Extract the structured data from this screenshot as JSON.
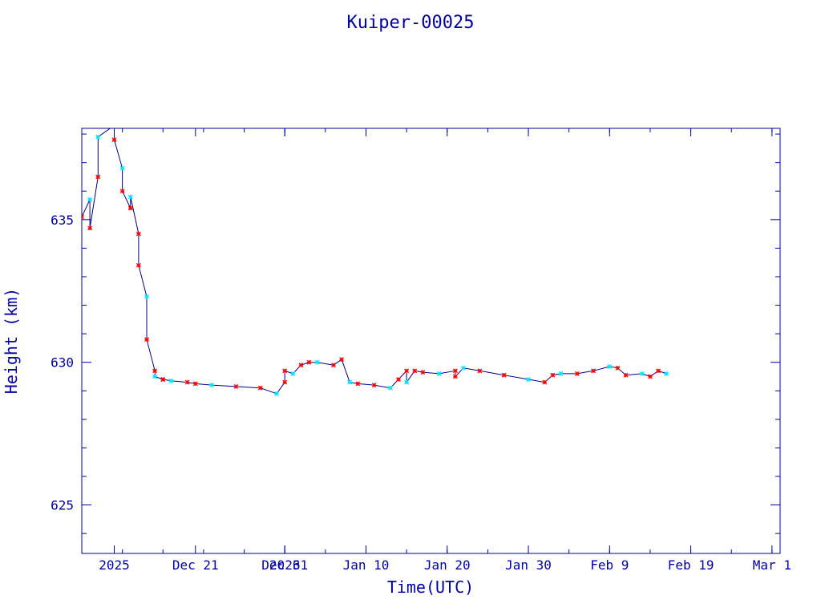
{
  "chart_data": {
    "type": "line",
    "title": "Kuiper-00025",
    "xlabel": "Time(UTC)",
    "ylabel": "Height (km)",
    "ylim": [
      623.3,
      638.2
    ],
    "xlim": [
      "2025-12-07",
      "2026-03-03"
    ],
    "x_tick_labels": [
      "2025",
      "Dec 21",
      "Dec 31",
      "2026",
      "Jan 10",
      "Jan 20",
      "Jan 30",
      "Feb  9",
      "Feb 19",
      "Mar  1"
    ],
    "x_tick_dates": [
      "2025-12-11",
      "2025-12-21",
      "2026-01-01",
      "2026-01-01",
      "2026-01-11",
      "2026-01-21",
      "2026-01-31",
      "2026-02-10",
      "2026-02-20",
      "2026-03-02"
    ],
    "y_ticks": [
      625,
      630,
      635
    ],
    "grid": false,
    "colors": {
      "axis": "#0000a0",
      "line": "#000080",
      "marker_a": "#ff0000",
      "marker_b": "#00e5ff"
    },
    "series": [
      {
        "x": [
          "2025-12-07",
          "2025-12-08",
          "2025-12-08",
          "2025-12-09",
          "2025-12-09",
          "2025-12-11",
          "2025-12-11",
          "2025-12-12",
          "2025-12-12",
          "2025-12-13",
          "2025-12-13",
          "2025-12-14",
          "2025-12-14",
          "2025-12-15",
          "2025-12-15",
          "2025-12-16",
          "2025-12-16",
          "2025-12-17",
          "2025-12-17",
          "2025-12-18",
          "2025-12-20",
          "2025-12-21",
          "2025-12-23",
          "2025-12-26",
          "2025-12-29",
          "2025-12-31",
          "2026-01-01",
          "2026-01-01",
          "2026-01-02",
          "2026-01-03",
          "2026-01-04",
          "2026-01-05",
          "2026-01-07",
          "2026-01-08",
          "2026-01-09",
          "2026-01-10",
          "2026-01-12",
          "2026-01-14",
          "2026-01-15",
          "2026-01-16",
          "2026-01-16",
          "2026-01-17",
          "2026-01-18",
          "2026-01-20",
          "2026-01-22",
          "2026-01-22",
          "2026-01-23",
          "2026-01-25",
          "2026-01-28",
          "2026-01-31",
          "2026-02-02",
          "2026-02-03",
          "2026-02-04",
          "2026-02-06",
          "2026-02-08",
          "2026-02-10",
          "2026-02-11",
          "2026-02-12",
          "2026-02-14",
          "2026-02-15",
          "2026-02-16",
          "2026-02-17"
        ],
        "y": [
          635.1,
          635.7,
          634.7,
          636.5,
          637.9,
          638.3,
          637.8,
          636.8,
          636.0,
          635.4,
          635.8,
          634.5,
          633.4,
          632.3,
          630.8,
          629.7,
          629.5,
          629.4,
          629.4,
          629.35,
          629.3,
          629.25,
          629.2,
          629.15,
          629.1,
          628.9,
          629.3,
          629.7,
          629.6,
          629.9,
          630.0,
          630.0,
          629.9,
          630.1,
          629.3,
          629.25,
          629.2,
          629.1,
          629.4,
          629.7,
          629.3,
          629.7,
          629.65,
          629.6,
          629.7,
          629.5,
          629.8,
          629.7,
          629.55,
          629.4,
          629.3,
          629.55,
          629.6,
          629.6,
          629.7,
          629.85,
          629.8,
          629.55,
          629.6,
          629.5,
          629.7,
          629.6
        ]
      }
    ]
  }
}
